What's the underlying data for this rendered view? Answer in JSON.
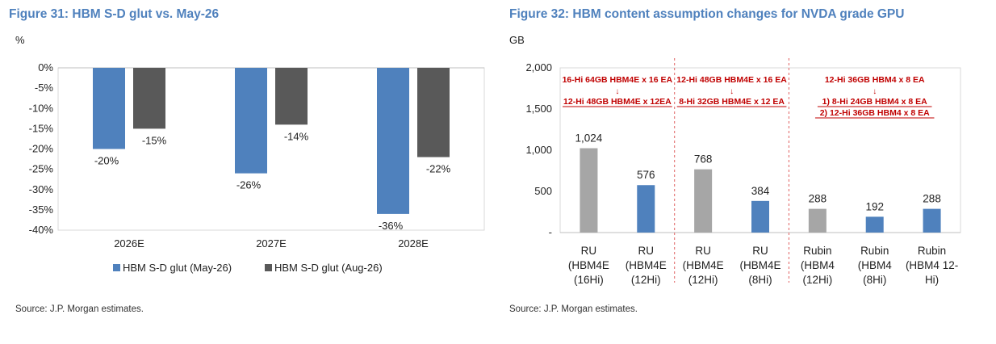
{
  "chart_data": [
    {
      "type": "bar",
      "title": "Figure 31: HBM S-D glut vs. May-26",
      "unit_label": "%",
      "categories": [
        "2026E",
        "2027E",
        "2028E"
      ],
      "series": [
        {
          "name": "HBM S-D glut (May-26)",
          "values": [
            -20,
            -26,
            -36
          ],
          "color": "#4f81bd",
          "labels": [
            "-20%",
            "-26%",
            "-36%"
          ]
        },
        {
          "name": "HBM S-D glut (Aug-26)",
          "values": [
            -15,
            -14,
            -22
          ],
          "color": "#595959",
          "labels": [
            "-15%",
            "-14%",
            "-22%"
          ]
        }
      ],
      "y_ticks": [
        "0%",
        "-5%",
        "-10%",
        "-15%",
        "-20%",
        "-25%",
        "-30%",
        "-35%",
        "-40%"
      ],
      "ylim": [
        -40,
        0
      ],
      "legend_position": "bottom",
      "source": "Source: J.P. Morgan estimates."
    },
    {
      "type": "bar",
      "title": "Figure 32: HBM content assumption changes for NVDA grade GPU",
      "unit_label": "GB",
      "categories": [
        [
          "RU",
          "(HBM4E",
          "(16Hi)"
        ],
        [
          "RU",
          "(HBM4E",
          "(12Hi)"
        ],
        [
          "RU",
          "(HBM4E",
          "(12Hi)"
        ],
        [
          "RU",
          "(HBM4E",
          "(8Hi)"
        ],
        [
          "Rubin",
          "(HBM4",
          "(12Hi)"
        ],
        [
          "Rubin",
          "(HBM4",
          "(8Hi)"
        ],
        [
          "Rubin",
          "(HBM4 12-",
          "Hi)"
        ]
      ],
      "values": [
        1024,
        576,
        768,
        384,
        288,
        192,
        288
      ],
      "value_labels": [
        "1,024",
        "576",
        "768",
        "384",
        "288",
        "192",
        "288"
      ],
      "bar_colors": [
        "#a6a6a6",
        "#4f81bd",
        "#a6a6a6",
        "#4f81bd",
        "#a6a6a6",
        "#4f81bd",
        "#4f81bd"
      ],
      "y_ticks": [
        "2,000",
        "1,500",
        "1,000",
        "500",
        "-"
      ],
      "ylim": [
        0,
        2000
      ],
      "annotations": [
        {
          "lines": [
            "16-Hi 64GB HBM4E x 16 EA",
            "↓",
            "12-Hi 48GB HBM4E x 12EA"
          ],
          "color": "#c00000"
        },
        {
          "lines": [
            "12-Hi 48GB HBM4E x 16 EA",
            "↓",
            "8-Hi 32GB HBM4E x 12 EA"
          ],
          "color": "#c00000"
        },
        {
          "lines": [
            "12-Hi 36GB HBM4 x 8 EA",
            "↓",
            "1) 8-Hi 24GB HBM4 x 8 EA",
            "2) 12-Hi 36GB HBM4 x 8 EA"
          ],
          "color": "#c00000"
        }
      ],
      "group_dividers": "dashed red lines separating RU 16Hi→12Hi, RU 12Hi→8Hi and Rubin groups",
      "source": "Source: J.P. Morgan estimates."
    }
  ]
}
